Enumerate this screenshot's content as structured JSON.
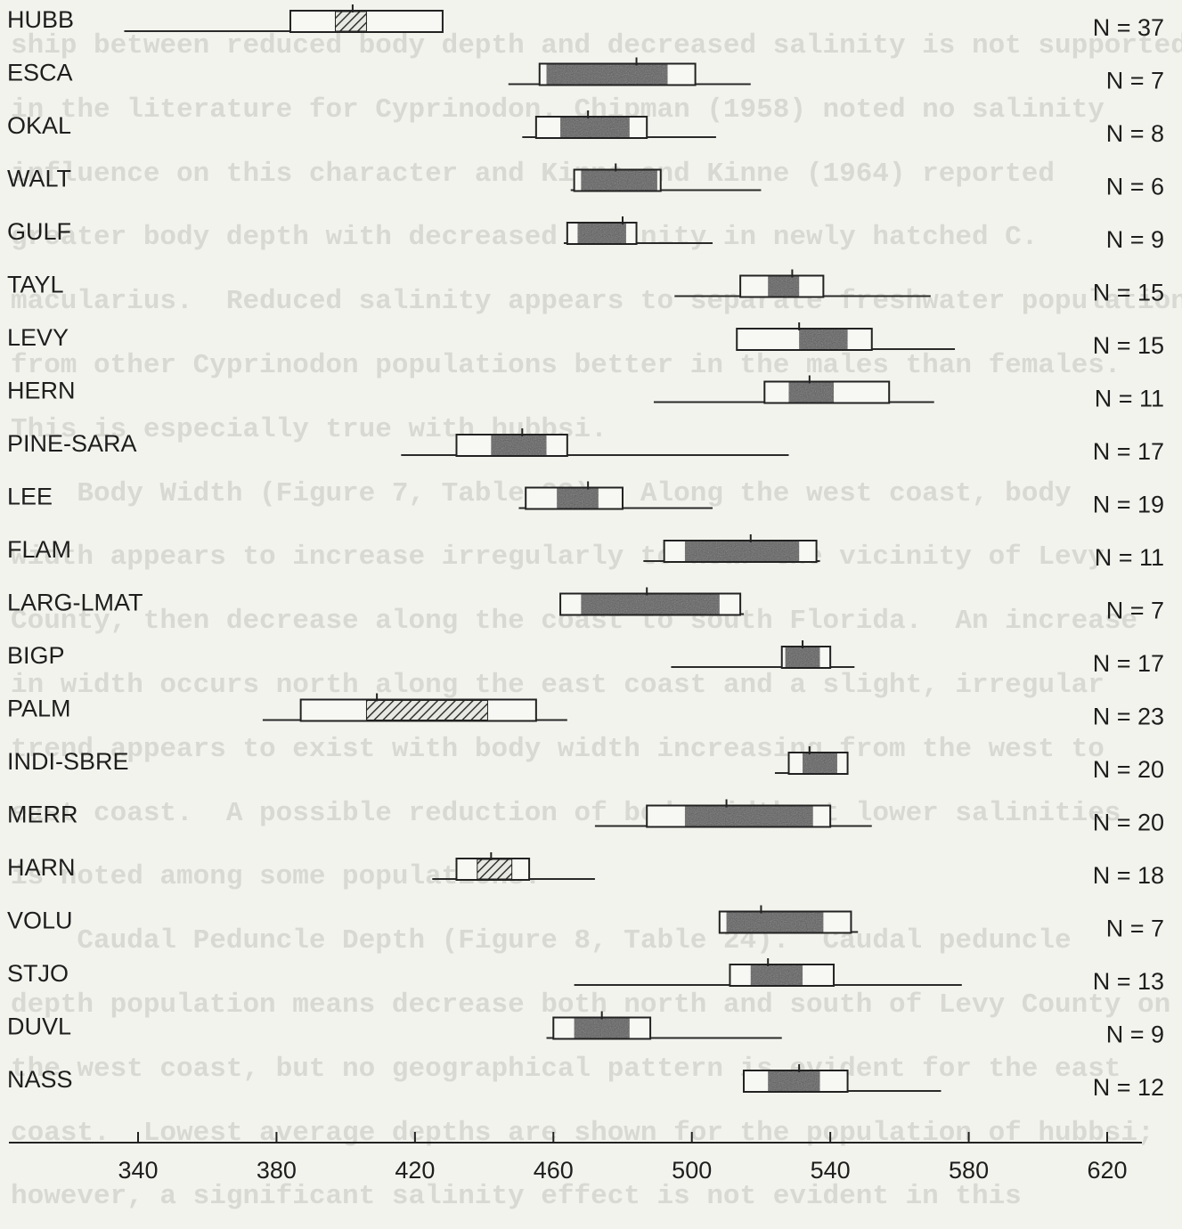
{
  "chart_data": {
    "type": "box",
    "title": "",
    "xlabel": "",
    "ylabel": "",
    "xlim": [
      300,
      630
    ],
    "x_ticks": [
      340,
      380,
      420,
      460,
      500,
      540,
      580,
      620
    ],
    "series_fill_legend": {
      "hatched": "#3a3a3a",
      "stippled": "#5a5a5a",
      "line": "#2a2a2a"
    },
    "populations": [
      {
        "name": "HUBB",
        "n_label": "N = 37",
        "range": [
          336,
          428
        ],
        "box": [
          384,
          428
        ],
        "mean": 402,
        "fill_range": [
          397,
          406
        ],
        "fill": "hatched"
      },
      {
        "name": "ESCA",
        "n_label": "N =  7",
        "range": [
          447,
          517
        ],
        "box": [
          456,
          501
        ],
        "mean": 484,
        "fill_range": [
          458,
          493
        ],
        "fill": "stippled"
      },
      {
        "name": "OKAL",
        "n_label": "N =  8",
        "range": [
          451,
          507
        ],
        "box": [
          455,
          487
        ],
        "mean": 470,
        "fill_range": [
          462,
          482
        ],
        "fill": "stippled"
      },
      {
        "name": "WALT",
        "n_label": "N =  6",
        "range": [
          465,
          520
        ],
        "box": [
          466,
          491
        ],
        "mean": 478,
        "fill_range": [
          468,
          490
        ],
        "fill": "stippled"
      },
      {
        "name": "GULF",
        "n_label": "N =  9",
        "range": [
          463,
          506
        ],
        "box": [
          464,
          484
        ],
        "mean": 480,
        "fill_range": [
          467,
          481
        ],
        "fill": "stippled"
      },
      {
        "name": "TAYL",
        "n_label": "N = 15",
        "range": [
          495,
          569
        ],
        "box": [
          514,
          538
        ],
        "mean": 529,
        "fill_range": [
          522,
          531
        ],
        "fill": "stippled"
      },
      {
        "name": "LEVY",
        "n_label": "N = 15",
        "range": [
          513,
          576
        ],
        "box": [
          513,
          552
        ],
        "mean": 531,
        "fill_range": [
          531,
          545
        ],
        "fill": "stippled"
      },
      {
        "name": "HERN",
        "n_label": "N = 11",
        "range": [
          489,
          570
        ],
        "box": [
          521,
          557
        ],
        "mean": 534,
        "fill_range": [
          528,
          541
        ],
        "fill": "stippled"
      },
      {
        "name": "PINE-SARA",
        "n_label": "N = 17",
        "range": [
          416,
          528
        ],
        "box": [
          432,
          464
        ],
        "mean": 451,
        "fill_range": [
          442,
          458
        ],
        "fill": "stippled"
      },
      {
        "name": "LEE",
        "n_label": "N = 19",
        "range": [
          450,
          506
        ],
        "box": [
          452,
          480
        ],
        "mean": 470,
        "fill_range": [
          461,
          473
        ],
        "fill": "stippled"
      },
      {
        "name": "FLAM",
        "n_label": "N = 11",
        "range": [
          486,
          537
        ],
        "box": [
          492,
          536
        ],
        "mean": 517,
        "fill_range": [
          498,
          531
        ],
        "fill": "stippled"
      },
      {
        "name": "LARG-LMAT",
        "n_label": "N =  7",
        "range": [
          462,
          515
        ],
        "box": [
          462,
          514
        ],
        "mean": 487,
        "fill_range": [
          468,
          508
        ],
        "fill": "stippled"
      },
      {
        "name": "BIGP",
        "n_label": "N = 17",
        "range": [
          494,
          547
        ],
        "box": [
          526,
          540
        ],
        "mean": 532,
        "fill_range": [
          527,
          537
        ],
        "fill": "stippled"
      },
      {
        "name": "PALM",
        "n_label": "N = 23",
        "range": [
          376,
          464
        ],
        "box": [
          387,
          455
        ],
        "mean": 409,
        "fill_range": [
          406,
          441
        ],
        "fill": "hatched"
      },
      {
        "name": "INDI-SBRE",
        "n_label": "N = 20",
        "range": [
          524,
          545
        ],
        "box": [
          528,
          545
        ],
        "mean": 534,
        "fill_range": [
          532,
          542
        ],
        "fill": "stippled"
      },
      {
        "name": "MERR",
        "n_label": "N = 20",
        "range": [
          472,
          552
        ],
        "box": [
          487,
          540
        ],
        "mean": 510,
        "fill_range": [
          498,
          535
        ],
        "fill": "stippled"
      },
      {
        "name": "HARN",
        "n_label": "N = 18",
        "range": [
          425,
          472
        ],
        "box": [
          432,
          453
        ],
        "mean": 442,
        "fill_range": [
          438,
          448
        ],
        "fill": "hatched"
      },
      {
        "name": "VOLU",
        "n_label": "N =  7",
        "range": [
          508,
          548
        ],
        "box": [
          508,
          546
        ],
        "mean": 520,
        "fill_range": [
          510,
          538
        ],
        "fill": "stippled"
      },
      {
        "name": "STJO",
        "n_label": "N = 13",
        "range": [
          466,
          578
        ],
        "box": [
          511,
          541
        ],
        "mean": 522,
        "fill_range": [
          517,
          532
        ],
        "fill": "stippled"
      },
      {
        "name": "DUVL",
        "n_label": "N =  9",
        "range": [
          458,
          526
        ],
        "box": [
          460,
          488
        ],
        "mean": 474,
        "fill_range": [
          466,
          482
        ],
        "fill": "stippled"
      },
      {
        "name": "NASS",
        "n_label": "N = 12",
        "range": [
          515,
          572
        ],
        "box": [
          515,
          545
        ],
        "mean": 531,
        "fill_range": [
          522,
          537
        ],
        "fill": "stippled"
      }
    ]
  },
  "background_text": [
    "ship between reduced body depth and decreased salinity is not supported",
    "in the literature for Cyprinodon. Chipman (1958) noted no salinity",
    "influence on this character and Kinne and Kinne (1964) reported",
    "greater body depth with decreased salinity in newly hatched C.",
    "macularius.  Reduced salinity appears to separate freshwater populations",
    "from other Cyprinodon populations better in the males than females.",
    "This is especially true with hubbsi.",
    "    Body Width (Figure 7, Table 23).  Along the west coast, body",
    "width appears to increase irregularly to near the vicinity of Levy",
    "County, then decrease along the coast to south Florida.  An increase",
    "in width occurs north along the east coast and a slight, irregular",
    "trend appears to exist with body width increasing from the west to",
    "east coast.  A possible reduction of body width at lower salinities",
    "is noted among some populations.",
    "    Caudal Peduncle Depth (Figure 8, Table 24).  Caudal peduncle",
    "depth population means decrease both north and south of Levy County on",
    "the west coast, but no geographical pattern is evident for the east",
    "coast.  Lowest average depths are shown for the population of hubbsi;",
    "however, a significant salinity effect is not evident in this"
  ]
}
